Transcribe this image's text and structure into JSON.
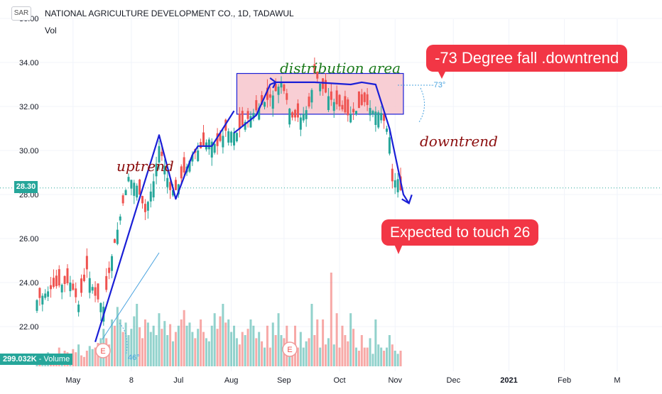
{
  "header": {
    "currency": "SAR",
    "title": "NATIONAL AGRICULTURE DEVELOPMENT CO., 1D, TADAWUL",
    "volume_indicator": "Vol"
  },
  "last_price_label": "28.30",
  "volume_label": {
    "value": "299.032K",
    "name": "Volume"
  },
  "earnings_marker": "E",
  "annotations": {
    "distribution": "distribution  area",
    "uptrend": "uptrend",
    "downtrend": "downtrend",
    "angle_up": "46°",
    "angle_down": "-73°"
  },
  "callouts": {
    "fall": "-73 Degree fall .downtrend",
    "target": "Expected to touch  26"
  },
  "colors": {
    "up": "#26a69a",
    "down": "#ef5350",
    "trendline": "#1a1fd6",
    "callout": "#f23645",
    "distribution_fill": "#f7c6cc",
    "uptrend_text": "#8b0d0d",
    "distribution_text": "#1b7a1b"
  },
  "chart_data": {
    "type": "candlestick",
    "title": "NATIONAL AGRICULTURE DEVELOPMENT CO., 1D, TADAWUL",
    "ylim": [
      21.0,
      36.0
    ],
    "y_ticks": [
      "22.00",
      "24.00",
      "26.00",
      "28.00",
      "30.00",
      "32.00",
      "34.00",
      "36.00"
    ],
    "x_ticks": [
      "May",
      "8",
      "Jul",
      "Aug",
      "Sep",
      "Oct",
      "Nov",
      "Dec",
      "2021",
      "Feb",
      "M"
    ],
    "last_price": 28.3,
    "x_range": [
      0,
      219
    ],
    "x_tick_values": [
      13,
      34,
      51,
      70,
      89,
      109,
      129,
      150,
      170,
      190,
      209
    ],
    "close_path": [
      [
        0,
        23.2
      ],
      [
        6,
        23.8
      ],
      [
        12,
        24.0
      ],
      [
        15,
        23.0
      ],
      [
        18,
        24.6
      ],
      [
        21,
        23.4
      ],
      [
        24,
        22.9
      ],
      [
        27,
        25.2
      ],
      [
        30,
        27.0
      ],
      [
        33,
        28.8
      ],
      [
        36,
        28.4
      ],
      [
        39,
        27.2
      ],
      [
        42,
        28.6
      ],
      [
        44,
        30.2
      ],
      [
        46,
        29.3
      ],
      [
        48,
        28.2
      ],
      [
        50,
        28.2
      ],
      [
        53,
        29.0
      ],
      [
        56,
        29.8
      ],
      [
        59,
        30.1
      ],
      [
        62,
        30.5
      ],
      [
        65,
        30.2
      ],
      [
        68,
        30.9
      ],
      [
        72,
        30.8
      ],
      [
        75,
        31.3
      ],
      [
        78,
        31.7
      ],
      [
        82,
        32.2
      ],
      [
        85,
        32.5
      ],
      [
        88,
        33.1
      ],
      [
        90,
        32.3
      ],
      [
        92,
        31.5
      ],
      [
        95,
        31.5
      ],
      [
        98,
        32.0
      ],
      [
        100,
        33.5
      ],
      [
        103,
        32.8
      ],
      [
        106,
        32.3
      ],
      [
        109,
        32.0
      ],
      [
        112,
        31.6
      ],
      [
        115,
        31.8
      ],
      [
        118,
        32.2
      ],
      [
        121,
        31.8
      ],
      [
        124,
        31.7
      ],
      [
        126,
        31.0
      ],
      [
        127,
        30.6
      ],
      [
        128,
        28.6
      ],
      [
        130,
        28.7
      ],
      [
        131,
        28.2
      ]
    ],
    "trend_lines": [
      [
        [
          21,
          21.3
        ],
        [
          44,
          30.7
        ],
        [
          50,
          27.8
        ],
        [
          56,
          29.8
        ],
        [
          58,
          30.2
        ],
        [
          63,
          30.2
        ],
        [
          71,
          31.8
        ]
      ],
      [
        [
          71,
          30.8
        ],
        [
          79,
          31.6
        ],
        [
          84,
          33.0
        ],
        [
          86,
          33.1
        ],
        [
          100,
          33.1
        ],
        [
          113,
          33.0
        ],
        [
          117,
          33.1
        ],
        [
          122,
          33.0
        ],
        [
          127,
          31.0
        ],
        [
          132,
          28.0
        ],
        [
          134,
          27.6
        ]
      ]
    ],
    "distribution_box": {
      "x": [
        72,
        132
      ],
      "y": [
        31.65,
        33.5
      ]
    },
    "volume": [
      6,
      5,
      7,
      4,
      9,
      5,
      6,
      7,
      12,
      8,
      10,
      9,
      8,
      11,
      9,
      14,
      7,
      6,
      10,
      13,
      11,
      12,
      15,
      18,
      24,
      18,
      14,
      30,
      26,
      38,
      30,
      22,
      28,
      20,
      24,
      32,
      40,
      25,
      18,
      30,
      28,
      22,
      26,
      20,
      34,
      24,
      29,
      20,
      27,
      16,
      22,
      26,
      30,
      36,
      26,
      28,
      22,
      18,
      24,
      30,
      22,
      18,
      16,
      26,
      34,
      24,
      32,
      40,
      28,
      30,
      22,
      26,
      18,
      14,
      22,
      20,
      24,
      30,
      26,
      18,
      22,
      16,
      12,
      26,
      12,
      28,
      20,
      34,
      20,
      18,
      26,
      14,
      10,
      26,
      12,
      22,
      12,
      16,
      18,
      40,
      20,
      30,
      12,
      30,
      14,
      18,
      60,
      14,
      34,
      12,
      26,
      20,
      16,
      34,
      24,
      12,
      10,
      20,
      12,
      12,
      18,
      8,
      30,
      14,
      12,
      10,
      12,
      20,
      14,
      10,
      8,
      10,
      8,
      6,
      10,
      8,
      12,
      10,
      8,
      10,
      10,
      12,
      8,
      6,
      8,
      10,
      8,
      6,
      4,
      6,
      5
    ]
  }
}
